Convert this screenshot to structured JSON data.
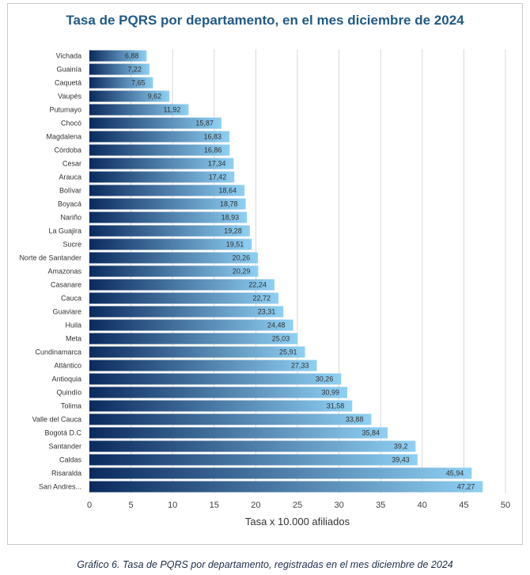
{
  "chart_data": {
    "type": "bar",
    "orientation": "horizontal",
    "title": "Tasa de PQRS por departamento, en el mes diciembre de 2024",
    "xlabel": "Tasa x 10.000 afiliados",
    "ylabel": "",
    "xlim": [
      0,
      50
    ],
    "xticks": [
      0,
      5,
      10,
      15,
      20,
      25,
      30,
      35,
      40,
      45,
      50
    ],
    "grid": true,
    "categories": [
      "Vichada",
      "Guainía",
      "Caquetá",
      "Vaupés",
      "Putumayo",
      "Chocó",
      "Magdalena",
      "Córdoba",
      "Cesar",
      "Arauca",
      "Bolívar",
      "Boyacá",
      "Nariño",
      "La Guajira",
      "Sucre",
      "Norte de Santander",
      "Amazonas",
      "Casanare",
      "Cauca",
      "Guaviare",
      "Huila",
      "Meta",
      "Cundinamarca",
      "Atlántico",
      "Antioquia",
      "Quindío",
      "Tolima",
      "Valle del Cauca",
      "Bogotá D.C",
      "Santander",
      "Caldas",
      "Risaralda",
      "San Andres..."
    ],
    "values": [
      6.88,
      7.22,
      7.65,
      9.62,
      11.92,
      15.87,
      16.83,
      16.86,
      17.34,
      17.42,
      18.64,
      18.78,
      18.93,
      19.28,
      19.51,
      20.26,
      20.29,
      22.24,
      22.72,
      23.31,
      24.48,
      25.03,
      25.91,
      27.33,
      30.26,
      30.99,
      31.58,
      33.88,
      35.84,
      39.2,
      39.43,
      45.94,
      47.27
    ],
    "value_labels": [
      "6,88",
      "7,22",
      "7,65",
      "9,62",
      "11,92",
      "15,87",
      "16,83",
      "16,86",
      "17,34",
      "17,42",
      "18,64",
      "18,78",
      "18,93",
      "19,28",
      "19,51",
      "20,26",
      "20,29",
      "22,24",
      "22,72",
      "23,31",
      "24,48",
      "25,03",
      "25,91",
      "27,33",
      "30,26",
      "30,99",
      "31,58",
      "33,88",
      "35,84",
      "39,2",
      "39,43",
      "45,94",
      "47,27"
    ],
    "colors": {
      "bar_start": "#0b2a5e",
      "bar_end": "#8fd0f3",
      "title": "#215a86",
      "grid": "#d9d9d9"
    }
  },
  "caption": "Gráfico 6. Tasa de PQRS por departamento, registradas en el mes diciembre de 2024"
}
